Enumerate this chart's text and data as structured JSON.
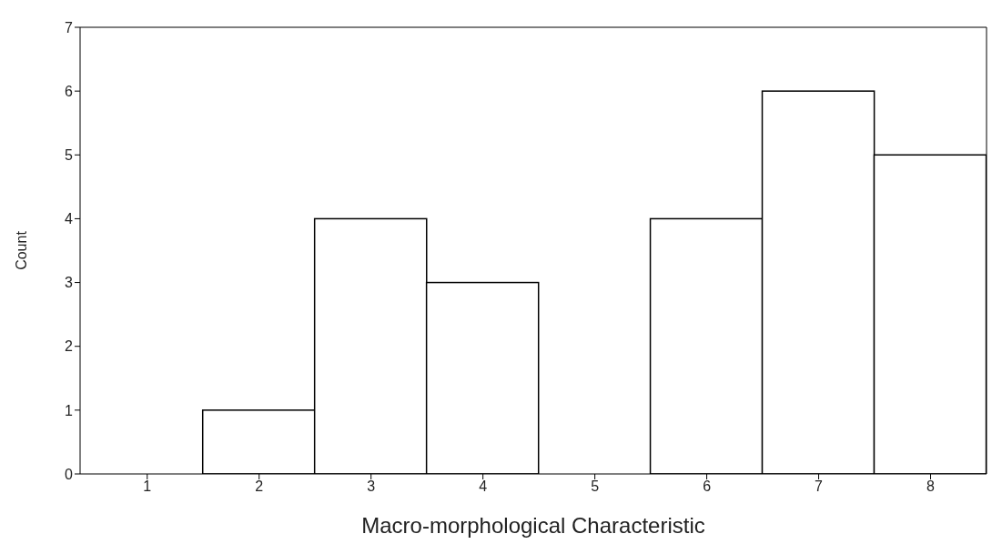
{
  "chart_data": {
    "type": "histogram",
    "xlabel": "Macro-morphological  Characteristic",
    "ylabel": "Count",
    "bins": [
      0.5,
      1.5,
      2.5,
      3.5,
      4.5,
      5.5,
      6.5,
      7.5,
      8.5
    ],
    "values": [
      0,
      1,
      4,
      3,
      0,
      4,
      6,
      5
    ],
    "color": "#ffffff",
    "xlim": [
      0.4,
      8.5
    ],
    "xticks": [
      1,
      2,
      3,
      4,
      5,
      6,
      7,
      8
    ],
    "ylim": [
      0,
      7
    ],
    "yticks": [
      0,
      1,
      2,
      3,
      4,
      5,
      6,
      7
    ],
    "grid": false
  }
}
